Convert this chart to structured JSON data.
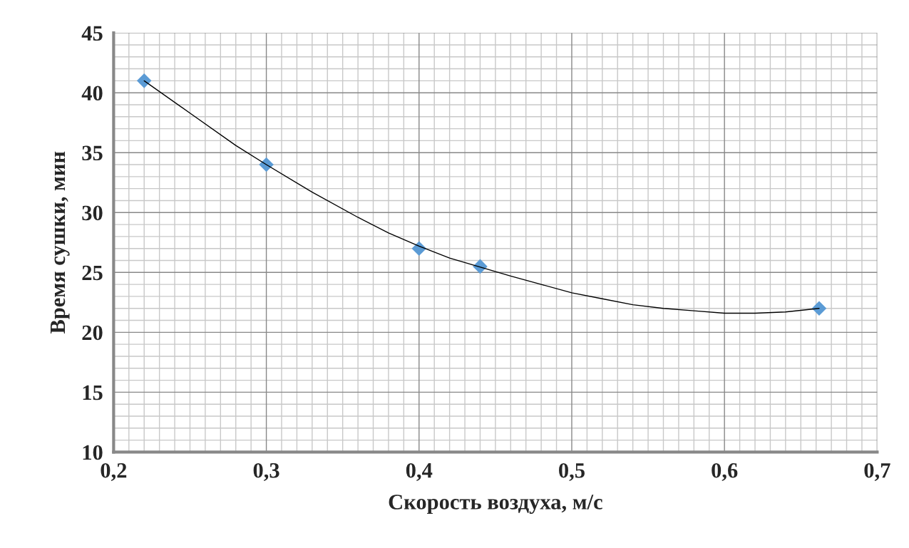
{
  "chart_data": {
    "type": "scatter",
    "xlabel": "Скорость воздуха, м/с",
    "ylabel": "Время сушки, мин",
    "x": [
      0.22,
      0.3,
      0.4,
      0.44,
      0.662
    ],
    "marker": "diamond",
    "series": [
      {
        "color": "#5b9bd5",
        "values": [
          41,
          34,
          27,
          25.5,
          22
        ]
      },
      {
        "type": "line",
        "color": "#000000",
        "marker": "none",
        "x": [
          0.22,
          0.25,
          0.28,
          0.3,
          0.33,
          0.36,
          0.38,
          0.4,
          0.42,
          0.46,
          0.48,
          0.5,
          0.52,
          0.54,
          0.56,
          0.58,
          0.6,
          0.62,
          0.64,
          0.662
        ],
        "values": [
          41,
          38.3,
          35.6,
          34,
          31.7,
          29.6,
          28.3,
          27.2,
          26.2,
          24.7,
          24.0,
          23.3,
          22.8,
          22.3,
          22.0,
          21.8,
          21.6,
          21.6,
          21.7,
          22
        ]
      }
    ],
    "xlim": [
      0.2,
      0.7
    ],
    "xticks": [
      {
        "value": 0.2,
        "label": "0,2"
      },
      {
        "value": 0.3,
        "label": "0,3"
      },
      {
        "value": 0.4,
        "label": "0,4"
      },
      {
        "value": 0.5,
        "label": "0,5"
      },
      {
        "value": 0.6,
        "label": "0,6"
      },
      {
        "value": 0.7,
        "label": "0,7"
      }
    ],
    "ylim": [
      10,
      45
    ],
    "yticks": [
      10,
      15,
      20,
      25,
      30,
      35,
      40,
      45
    ],
    "grid": true
  }
}
